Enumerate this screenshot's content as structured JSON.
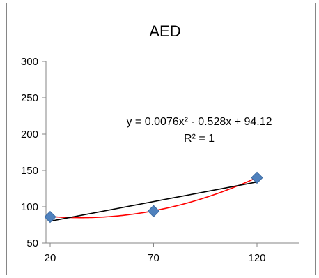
{
  "chart_data": {
    "type": "scatter",
    "title": "AED",
    "xlabel": "",
    "ylabel": "",
    "x_ticks": [
      "20",
      "70",
      "120"
    ],
    "y_ticks": [
      "50",
      "100",
      "150",
      "200",
      "250",
      "300"
    ],
    "xlim": [
      20,
      135
    ],
    "ylim": [
      50,
      300
    ],
    "grid": false,
    "legend": "none",
    "series": [
      {
        "x": [
          20,
          70,
          120
        ],
        "y": [
          86,
          94,
          140
        ],
        "marker": "diamond",
        "color": "#4f81bd"
      }
    ],
    "quadratic_trendline": {
      "a": 0.0076,
      "b": -0.528,
      "c": 94.12,
      "color": "#ff0000"
    },
    "linear_trendline": {
      "slope": 0.54,
      "intercept": 69.3,
      "color": "#000000"
    },
    "annotation": {
      "equation": "y = 0.0076x² - 0.528x + 94.12",
      "r_squared": "R² = 1"
    }
  }
}
